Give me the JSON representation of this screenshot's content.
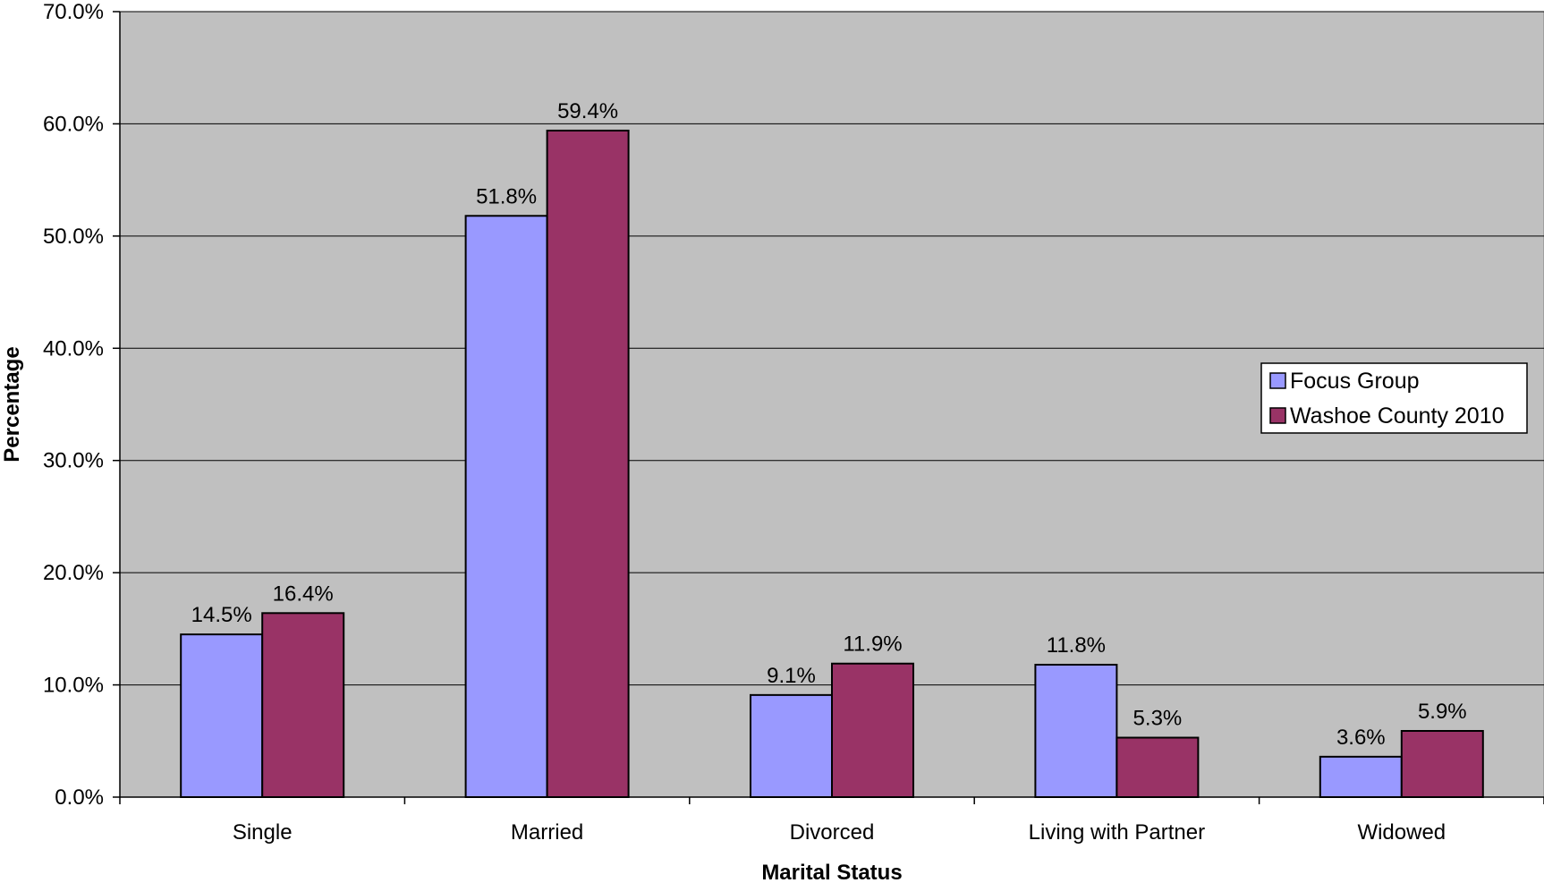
{
  "chart_data": {
    "type": "bar",
    "title": "",
    "xlabel": "Marital Status",
    "ylabel": "Percentage",
    "ylim": [
      0,
      70
    ],
    "ytick_step": 10,
    "ytick_labels": [
      "0.0%",
      "10.0%",
      "20.0%",
      "30.0%",
      "40.0%",
      "50.0%",
      "60.0%",
      "70.0%"
    ],
    "grid": true,
    "legend_position": "right",
    "categories": [
      "Single",
      "Married",
      "Divorced",
      "Living with Partner",
      "Widowed"
    ],
    "series": [
      {
        "name": "Focus Group",
        "color": "#9999FF",
        "values": [
          14.5,
          51.8,
          9.1,
          11.8,
          3.6
        ],
        "labels": [
          "14.5%",
          "51.8%",
          "9.1%",
          "11.8%",
          "3.6%"
        ]
      },
      {
        "name": "Washoe County 2010",
        "color": "#993366",
        "values": [
          16.4,
          59.4,
          11.9,
          5.3,
          5.9
        ],
        "labels": [
          "16.4%",
          "59.4%",
          "11.9%",
          "5.3%",
          "5.9%"
        ]
      }
    ],
    "plot_background": "#C0C0C0"
  }
}
